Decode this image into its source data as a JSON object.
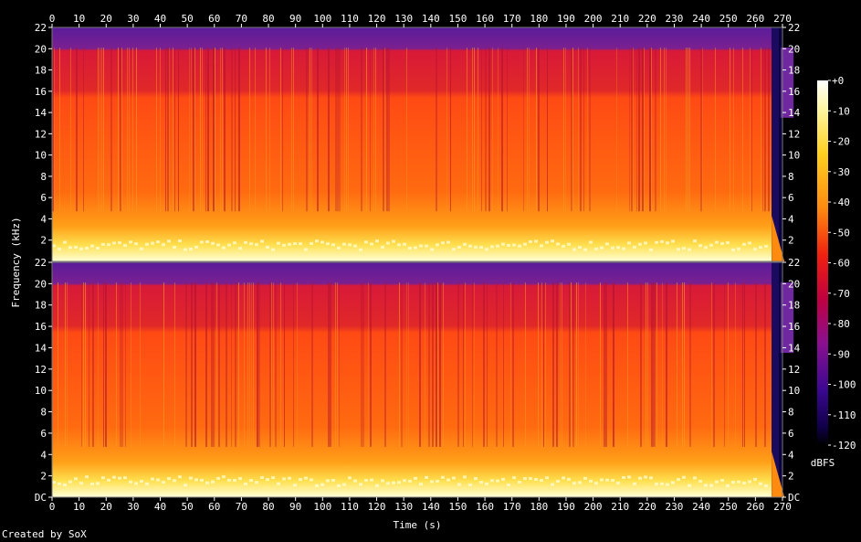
{
  "chart_data": {
    "type": "heatmap",
    "title": "",
    "xlabel": "Time (s)",
    "ylabel": "Frequency (kHz)",
    "xlim": [
      0,
      270
    ],
    "ylim_khz": [
      0,
      22
    ],
    "x_ticks": [
      "0",
      "10",
      "20",
      "30",
      "40",
      "50",
      "60",
      "70",
      "80",
      "90",
      "100",
      "110",
      "120",
      "130",
      "140",
      "150",
      "160",
      "170",
      "180",
      "190",
      "200",
      "210",
      "220",
      "230",
      "240",
      "250",
      "260",
      "270"
    ],
    "y_ticks_top": [
      "2",
      "4",
      "6",
      "8",
      "10",
      "12",
      "14",
      "16",
      "18",
      "20",
      "22"
    ],
    "y_ticks_bottom": [
      "DC",
      "2",
      "4",
      "6",
      "8",
      "10",
      "12",
      "14",
      "16",
      "18",
      "20",
      "22"
    ],
    "channels": 2,
    "colorbar": {
      "label": "dBFS",
      "ticks": [
        "+0",
        "-10",
        "-20",
        "-30",
        "-40",
        "-50",
        "-60",
        "-70",
        "-80",
        "-90",
        "-100",
        "-110",
        "-120"
      ],
      "range": [
        -120,
        0
      ]
    },
    "colors": {
      "peak": "#ffffe8",
      "high": "#ffd020",
      "mid": "#ff5010",
      "low": "#c00030",
      "quiet": "#7020a0",
      "floor": "#100040"
    }
  },
  "credit": "Created by SoX"
}
